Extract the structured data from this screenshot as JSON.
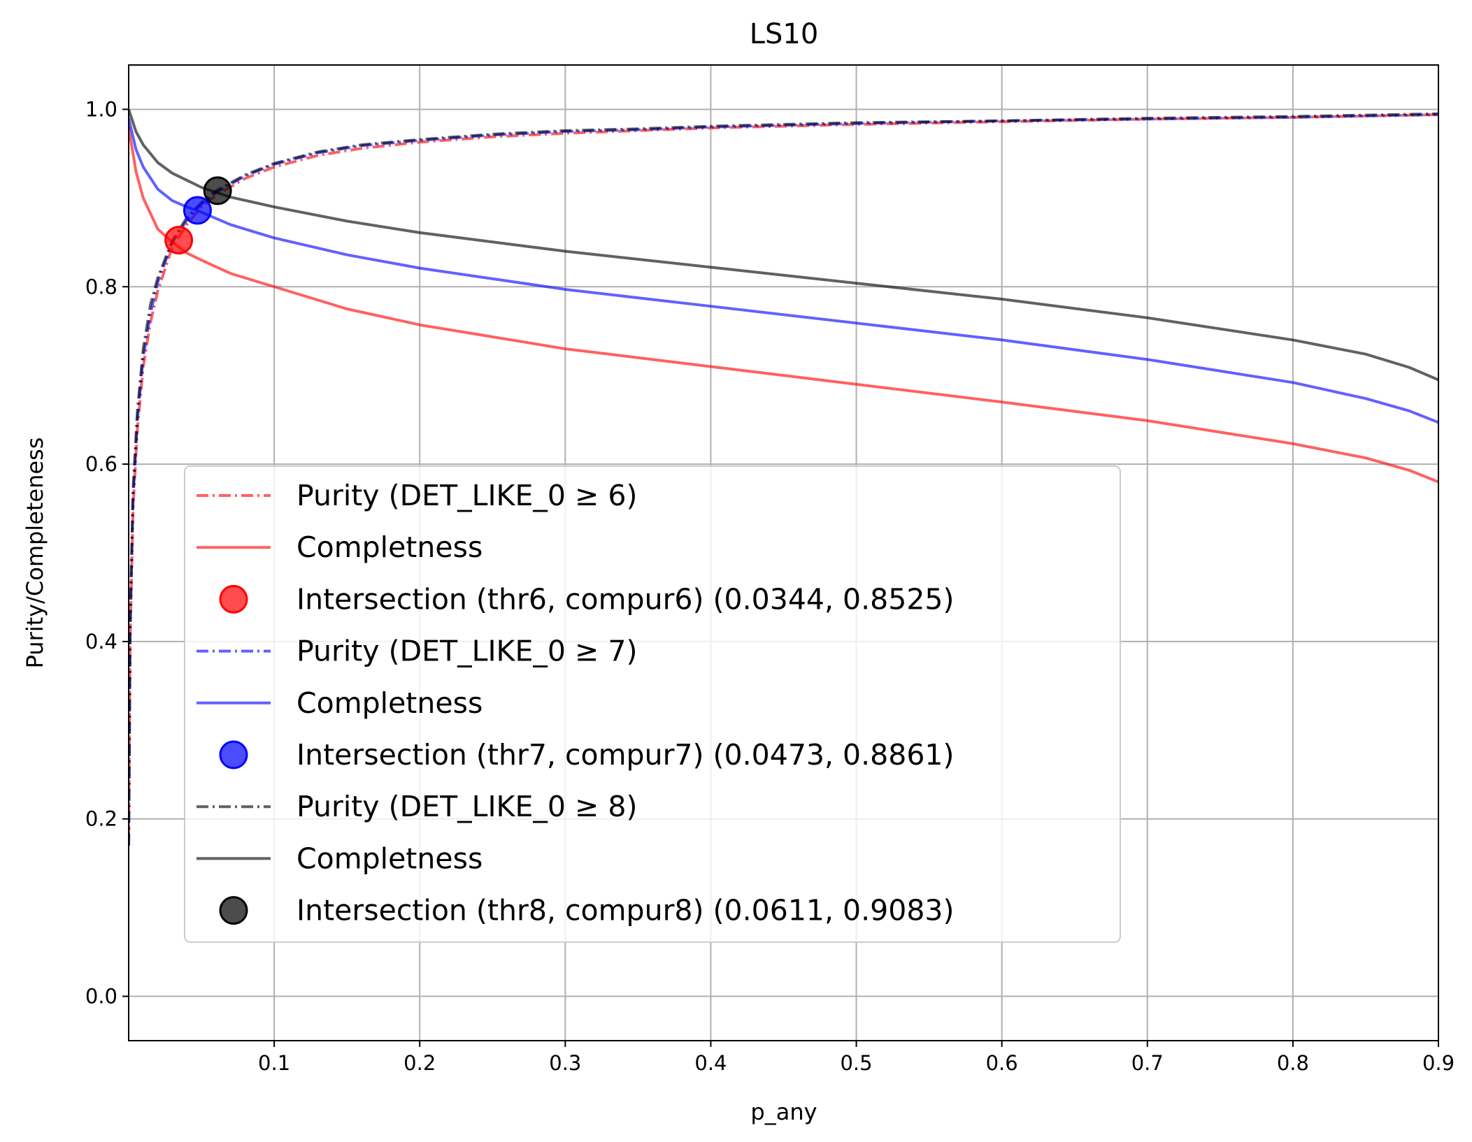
{
  "chart_data": {
    "type": "line",
    "title": "LS10",
    "xlabel": "p_any",
    "ylabel": "Purity/Completeness",
    "xlim": [
      0.0,
      0.9
    ],
    "ylim": [
      -0.05,
      1.05
    ],
    "xticks": [
      0.1,
      0.2,
      0.3,
      0.4,
      0.5,
      0.6,
      0.7,
      0.8,
      0.9
    ],
    "xtick_labels": [
      "0.1",
      "0.2",
      "0.3",
      "0.4",
      "0.5",
      "0.6",
      "0.7",
      "0.8",
      "0.9"
    ],
    "yticks": [
      0.0,
      0.2,
      0.4,
      0.6,
      0.8,
      1.0
    ],
    "ytick_labels": [
      "0.0",
      "0.2",
      "0.4",
      "0.6",
      "0.8",
      "1.0"
    ],
    "grid": true,
    "legend_position": "lower-left",
    "groups": [
      {
        "color": "#ff0000",
        "purity_label": "Purity (DET_LIKE_0 ≥ 6)",
        "completeness_label": "Completness",
        "intersection_label": "Intersection (thr6, compur6) (0.0344, 0.8525)",
        "purity": {
          "x": [
            0.0,
            0.001,
            0.003,
            0.006,
            0.01,
            0.015,
            0.02,
            0.03,
            0.04,
            0.05,
            0.06,
            0.08,
            0.1,
            0.13,
            0.16,
            0.2,
            0.25,
            0.3,
            0.35,
            0.4,
            0.5,
            0.6,
            0.7,
            0.8,
            0.9
          ],
          "y": [
            0.18,
            0.4,
            0.55,
            0.64,
            0.71,
            0.76,
            0.795,
            0.845,
            0.87,
            0.89,
            0.903,
            0.922,
            0.935,
            0.948,
            0.956,
            0.963,
            0.969,
            0.973,
            0.976,
            0.979,
            0.983,
            0.986,
            0.989,
            0.991,
            0.994
          ]
        },
        "completeness": {
          "x": [
            0.0,
            0.005,
            0.01,
            0.02,
            0.03,
            0.04,
            0.05,
            0.07,
            0.1,
            0.15,
            0.2,
            0.3,
            0.4,
            0.5,
            0.6,
            0.7,
            0.8,
            0.85,
            0.88,
            0.9
          ],
          "y": [
            0.98,
            0.93,
            0.9,
            0.865,
            0.85,
            0.838,
            0.83,
            0.815,
            0.8,
            0.775,
            0.757,
            0.73,
            0.71,
            0.69,
            0.67,
            0.649,
            0.623,
            0.607,
            0.593,
            0.58
          ]
        },
        "intersection": {
          "x": 0.0344,
          "y": 0.8525
        }
      },
      {
        "color": "#0000ff",
        "purity_label": "Purity (DET_LIKE_0 ≥ 7)",
        "completeness_label": "Completness",
        "intersection_label": "Intersection (thr7, compur7) (0.0473, 0.8861)",
        "purity": {
          "x": [
            0.0,
            0.001,
            0.003,
            0.006,
            0.01,
            0.015,
            0.02,
            0.03,
            0.04,
            0.05,
            0.06,
            0.08,
            0.1,
            0.13,
            0.16,
            0.2,
            0.25,
            0.3,
            0.35,
            0.4,
            0.5,
            0.6,
            0.7,
            0.8,
            0.9
          ],
          "y": [
            0.17,
            0.41,
            0.56,
            0.65,
            0.72,
            0.77,
            0.805,
            0.85,
            0.875,
            0.893,
            0.906,
            0.925,
            0.938,
            0.951,
            0.959,
            0.965,
            0.971,
            0.975,
            0.977,
            0.98,
            0.984,
            0.987,
            0.989,
            0.991,
            0.994
          ]
        },
        "completeness": {
          "x": [
            0.0,
            0.005,
            0.01,
            0.02,
            0.03,
            0.04,
            0.05,
            0.07,
            0.1,
            0.15,
            0.2,
            0.3,
            0.4,
            0.5,
            0.6,
            0.7,
            0.8,
            0.85,
            0.88,
            0.9
          ],
          "y": [
            0.99,
            0.955,
            0.935,
            0.91,
            0.897,
            0.89,
            0.884,
            0.87,
            0.855,
            0.836,
            0.821,
            0.797,
            0.778,
            0.759,
            0.74,
            0.718,
            0.692,
            0.674,
            0.66,
            0.647
          ]
        },
        "intersection": {
          "x": 0.0473,
          "y": 0.8861
        }
      },
      {
        "color": "#000000",
        "purity_label": "Purity (DET_LIKE_0 ≥ 8)",
        "completeness_label": "Completness",
        "intersection_label": "Intersection (thr8, compur8) (0.0611, 0.9083)",
        "purity": {
          "x": [
            0.0,
            0.001,
            0.003,
            0.006,
            0.01,
            0.015,
            0.02,
            0.03,
            0.04,
            0.05,
            0.06,
            0.08,
            0.1,
            0.13,
            0.16,
            0.2,
            0.25,
            0.3,
            0.35,
            0.4,
            0.5,
            0.6,
            0.7,
            0.8,
            0.9
          ],
          "y": [
            0.17,
            0.42,
            0.57,
            0.66,
            0.73,
            0.78,
            0.81,
            0.852,
            0.878,
            0.895,
            0.908,
            0.926,
            0.939,
            0.952,
            0.96,
            0.966,
            0.972,
            0.976,
            0.978,
            0.981,
            0.985,
            0.987,
            0.99,
            0.992,
            0.995
          ]
        },
        "completeness": {
          "x": [
            0.0,
            0.005,
            0.01,
            0.02,
            0.03,
            0.04,
            0.05,
            0.07,
            0.1,
            0.15,
            0.2,
            0.3,
            0.4,
            0.5,
            0.6,
            0.7,
            0.8,
            0.85,
            0.88,
            0.9
          ],
          "y": [
            1.0,
            0.975,
            0.96,
            0.94,
            0.928,
            0.92,
            0.912,
            0.901,
            0.89,
            0.874,
            0.861,
            0.84,
            0.822,
            0.804,
            0.786,
            0.765,
            0.74,
            0.724,
            0.709,
            0.695
          ]
        },
        "intersection": {
          "x": 0.0611,
          "y": 0.9083
        }
      }
    ]
  }
}
